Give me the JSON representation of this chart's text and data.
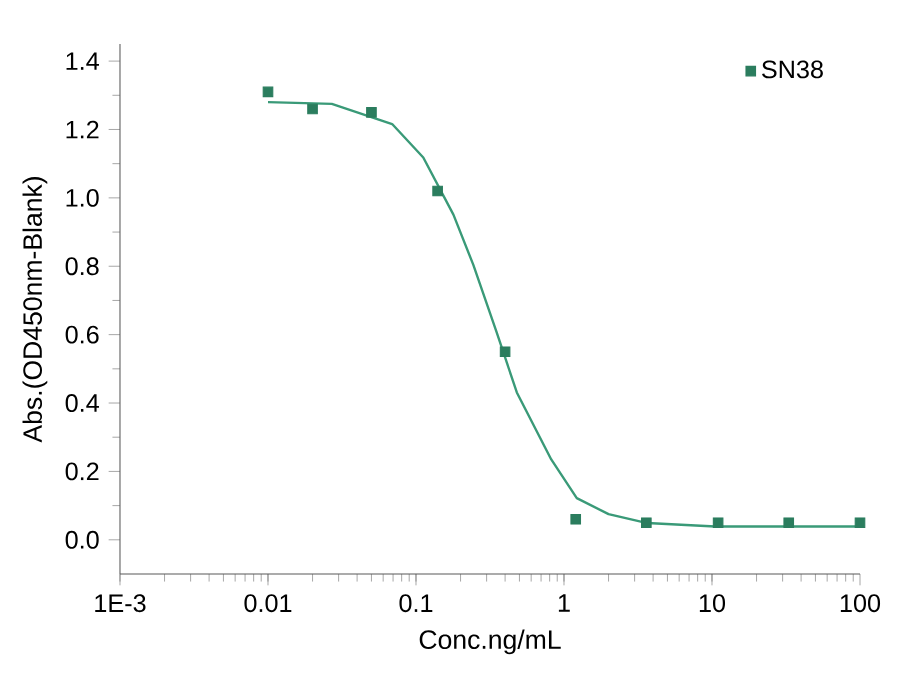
{
  "chart_data": {
    "type": "scatter",
    "xlabel": "Conc.ng/mL",
    "ylabel": "Abs.(OD450nm-Blank)",
    "log": "x",
    "xlim": [
      0.001,
      100
    ],
    "ylim": [
      -0.1,
      1.45
    ],
    "xticks": [
      {
        "value": 0.001,
        "label": "1E-3"
      },
      0.01,
      0.1,
      1,
      10,
      100
    ],
    "yticks": [
      {
        "value": 0,
        "label": "0.0"
      },
      0.2,
      0.4,
      0.6,
      0.8,
      {
        "value": 1,
        "label": "1.0"
      },
      1.2,
      1.4
    ],
    "marker": "square",
    "legend": "top right",
    "grid": false,
    "series": [
      {
        "name": "SN38",
        "color": "#2b7d5e",
        "x": [
          0.01,
          0.02,
          0.05,
          0.14,
          0.4,
          1.2,
          3.6,
          11,
          33,
          100
        ],
        "values": [
          1.31,
          1.26,
          1.25,
          1.02,
          0.55,
          0.06,
          0.05,
          0.05,
          0.05,
          0.05
        ]
      },
      {
        "type": "line",
        "color": "#3a9a78",
        "marker": "none",
        "x": [
          0.01,
          0.027,
          0.069,
          0.112,
          0.179,
          0.244,
          0.35,
          0.48,
          0.82,
          1.22,
          2.0,
          3.65,
          10.5,
          100
        ],
        "values": [
          1.28,
          1.275,
          1.216,
          1.118,
          0.951,
          0.804,
          0.608,
          0.431,
          0.235,
          0.122,
          0.075,
          0.049,
          0.039,
          0.039
        ]
      }
    ]
  }
}
